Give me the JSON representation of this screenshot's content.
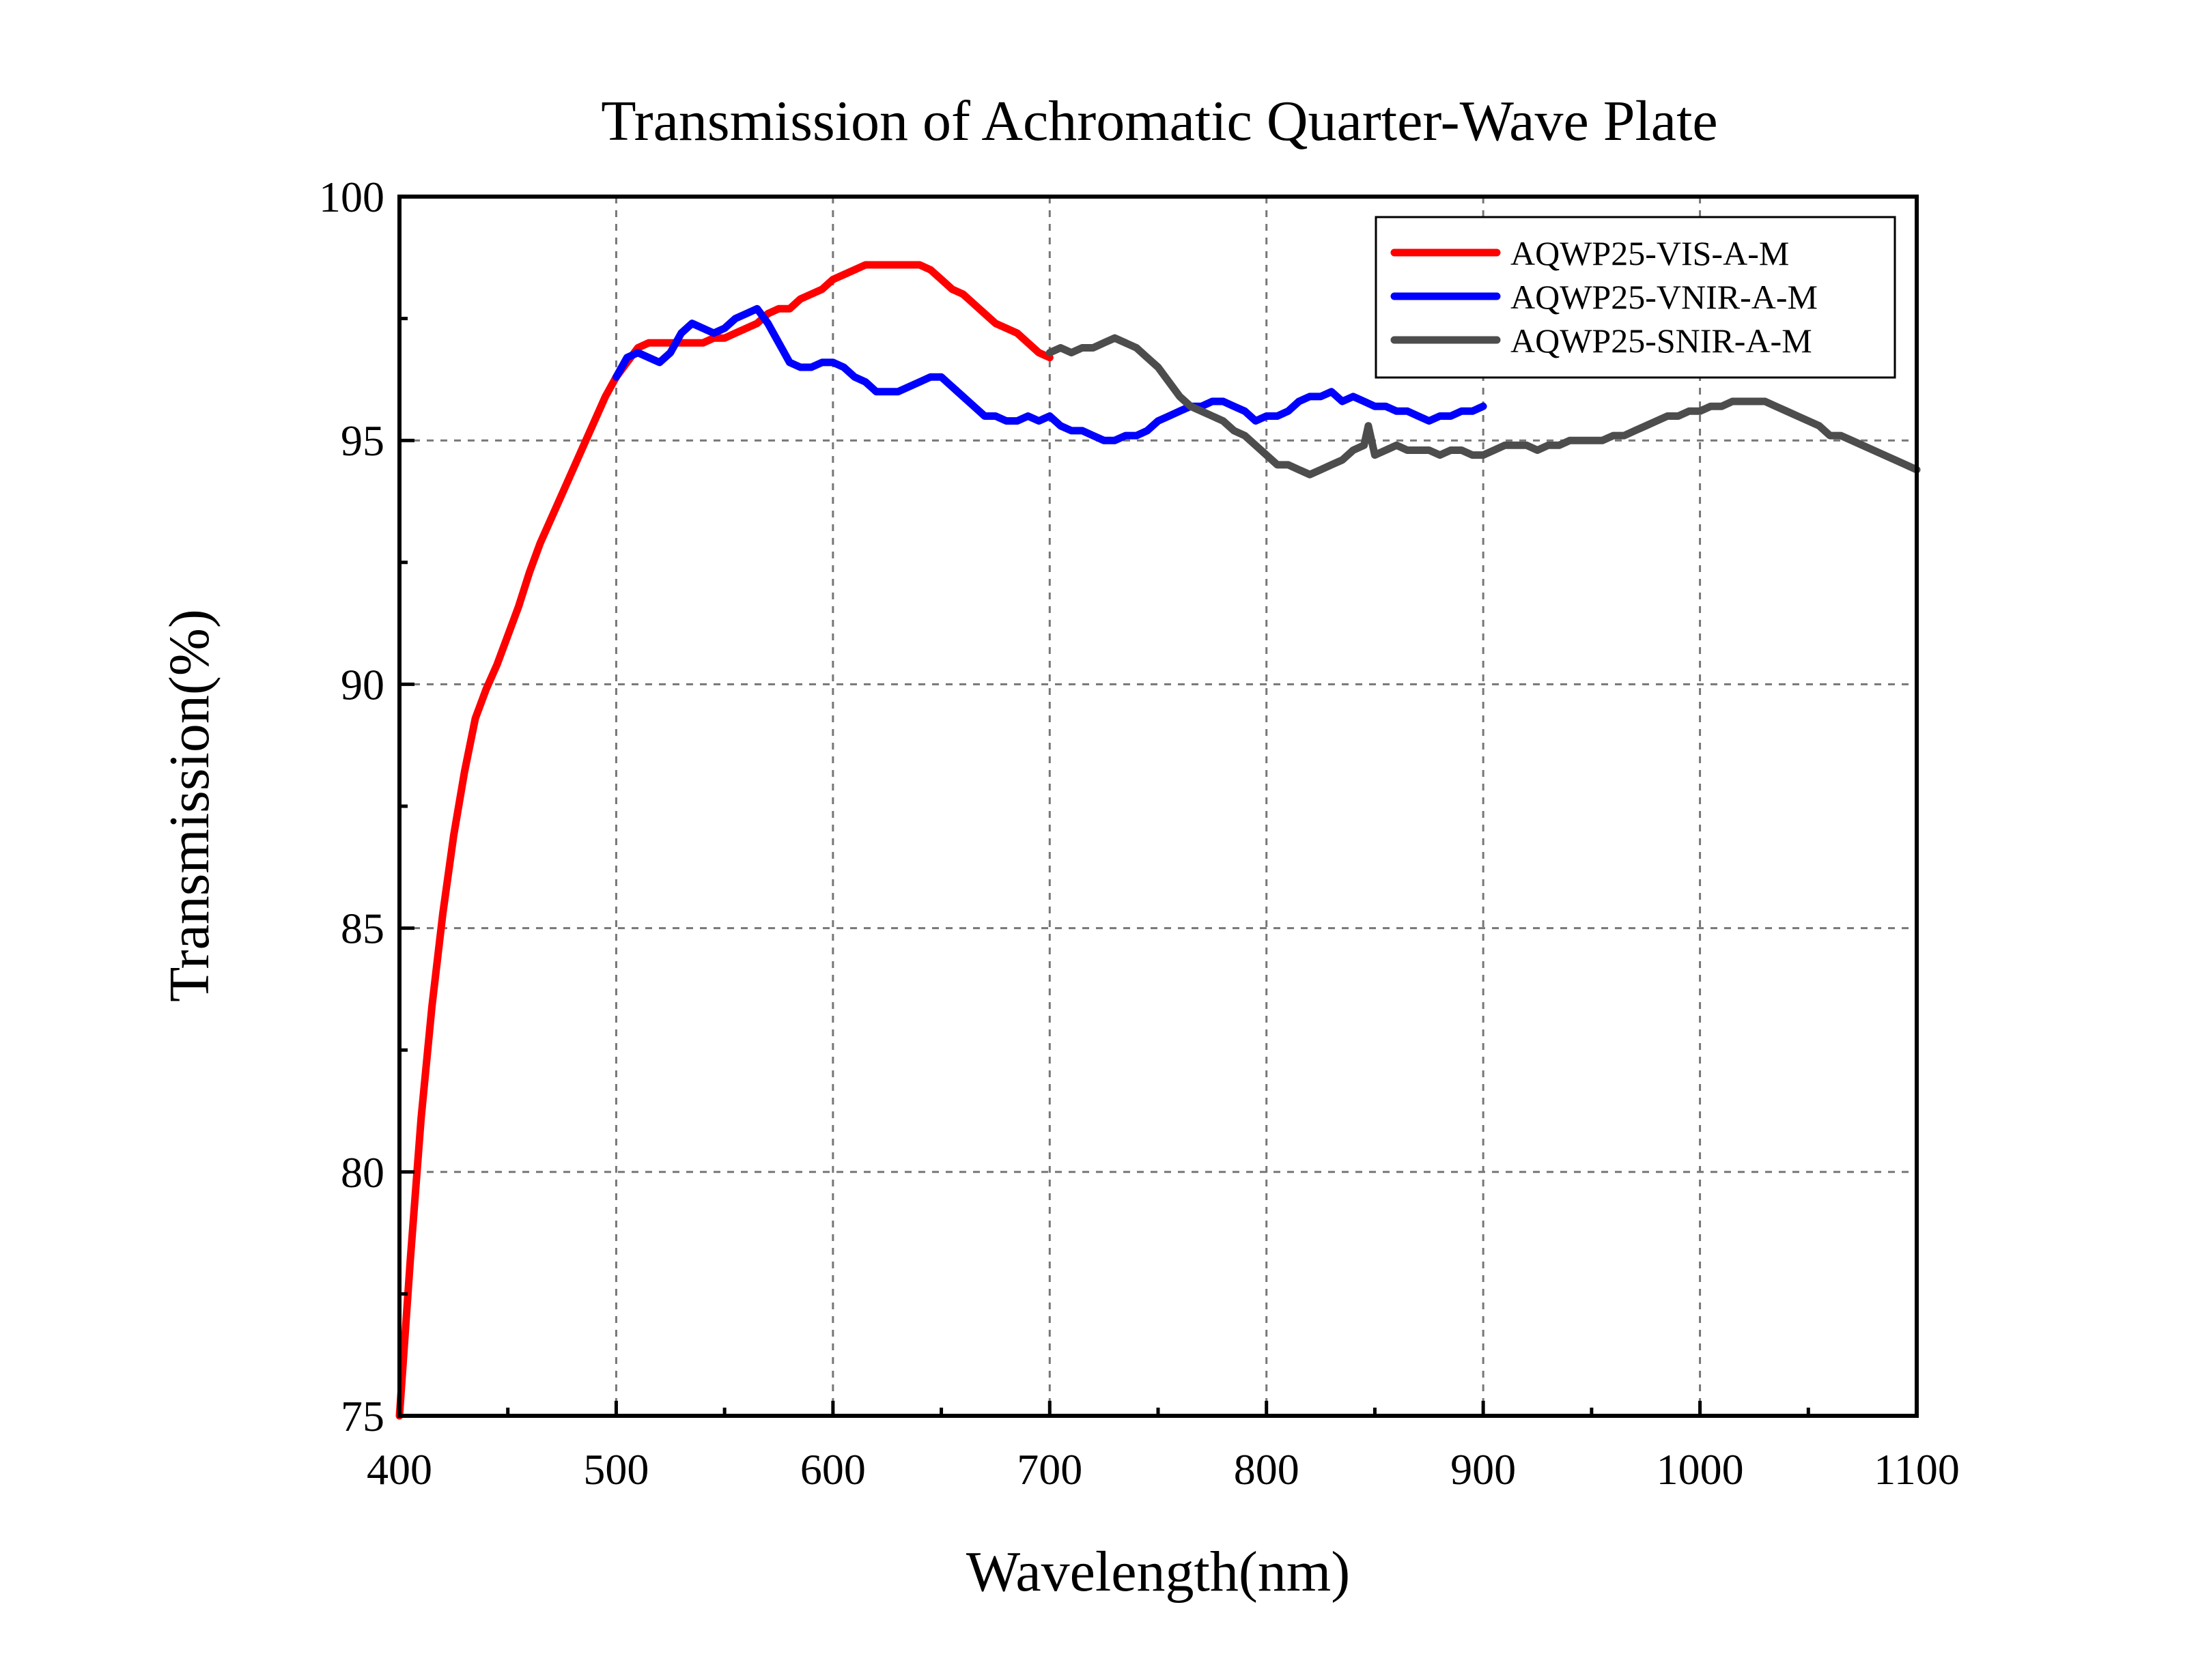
{
  "chart_data": {
    "type": "line",
    "title": "Transmission of Achromatic Quarter-Wave Plate",
    "xlabel": "Wavelength(nm)",
    "ylabel": "Transmission(%)",
    "xlim": [
      400,
      1100
    ],
    "ylim": [
      75,
      100
    ],
    "x_ticks": [
      400,
      500,
      600,
      700,
      800,
      900,
      1000,
      1100
    ],
    "y_ticks": [
      75,
      80,
      85,
      90,
      95,
      100
    ],
    "grid": true,
    "legend_position": "top-right",
    "series": [
      {
        "name": "AQWP25-VIS-A-M",
        "color": "#ff0000",
        "x": [
          400,
          405,
          410,
          415,
          420,
          425,
          430,
          435,
          440,
          445,
          450,
          455,
          460,
          465,
          470,
          475,
          480,
          485,
          490,
          495,
          500,
          505,
          510,
          515,
          520,
          525,
          530,
          535,
          540,
          545,
          550,
          555,
          560,
          565,
          570,
          575,
          580,
          585,
          590,
          595,
          600,
          605,
          610,
          615,
          620,
          625,
          630,
          635,
          640,
          645,
          650,
          655,
          660,
          665,
          670,
          675,
          680,
          685,
          690,
          695,
          700
        ],
        "y": [
          75.0,
          78.2,
          81.1,
          83.4,
          85.3,
          86.9,
          88.2,
          89.3,
          89.9,
          90.4,
          91.0,
          91.6,
          92.3,
          92.9,
          93.4,
          93.9,
          94.4,
          94.9,
          95.4,
          95.9,
          96.3,
          96.6,
          96.9,
          97.0,
          97.0,
          97.0,
          97.0,
          97.0,
          97.0,
          97.1,
          97.1,
          97.2,
          97.3,
          97.4,
          97.6,
          97.7,
          97.7,
          97.9,
          98.0,
          98.1,
          98.3,
          98.4,
          98.5,
          98.6,
          98.6,
          98.6,
          98.6,
          98.6,
          98.6,
          98.5,
          98.3,
          98.1,
          98.0,
          97.8,
          97.6,
          97.4,
          97.3,
          97.2,
          97.0,
          96.8,
          96.7
        ]
      },
      {
        "name": "AQWP25-VNIR-A-M",
        "color": "#0000ff",
        "x": [
          500,
          505,
          510,
          515,
          520,
          525,
          530,
          535,
          540,
          545,
          550,
          555,
          560,
          565,
          570,
          575,
          580,
          585,
          590,
          595,
          600,
          605,
          610,
          615,
          620,
          625,
          630,
          635,
          640,
          645,
          650,
          655,
          660,
          665,
          670,
          675,
          680,
          685,
          690,
          695,
          700,
          705,
          710,
          715,
          720,
          725,
          730,
          735,
          740,
          745,
          750,
          755,
          760,
          765,
          770,
          775,
          780,
          785,
          790,
          795,
          800,
          805,
          810,
          815,
          820,
          825,
          830,
          835,
          840,
          845,
          850,
          855,
          860,
          865,
          870,
          875,
          880,
          885,
          890,
          895,
          900
        ],
        "y": [
          96.3,
          96.7,
          96.8,
          96.7,
          96.6,
          96.8,
          97.2,
          97.4,
          97.3,
          97.2,
          97.3,
          97.5,
          97.6,
          97.7,
          97.4,
          97.0,
          96.6,
          96.5,
          96.5,
          96.6,
          96.6,
          96.5,
          96.3,
          96.2,
          96.0,
          96.0,
          96.0,
          96.1,
          96.2,
          96.3,
          96.3,
          96.1,
          95.9,
          95.7,
          95.5,
          95.5,
          95.4,
          95.4,
          95.5,
          95.4,
          95.5,
          95.3,
          95.2,
          95.2,
          95.1,
          95.0,
          95.0,
          95.1,
          95.1,
          95.2,
          95.4,
          95.5,
          95.6,
          95.7,
          95.7,
          95.8,
          95.8,
          95.7,
          95.6,
          95.4,
          95.5,
          95.5,
          95.6,
          95.8,
          95.9,
          95.9,
          96.0,
          95.8,
          95.9,
          95.8,
          95.7,
          95.7,
          95.6,
          95.6,
          95.5,
          95.4,
          95.5,
          95.5,
          95.6,
          95.6,
          95.7
        ]
      },
      {
        "name": "AQWP25-SNIR-A-M",
        "color": "#4d4d4d",
        "x": [
          700,
          705,
          710,
          715,
          720,
          725,
          730,
          735,
          740,
          745,
          750,
          755,
          760,
          765,
          770,
          775,
          780,
          785,
          790,
          795,
          800,
          805,
          810,
          815,
          820,
          825,
          830,
          835,
          840,
          845,
          847,
          850,
          855,
          860,
          865,
          870,
          875,
          880,
          885,
          890,
          895,
          900,
          905,
          910,
          915,
          920,
          925,
          930,
          935,
          940,
          945,
          950,
          955,
          960,
          965,
          970,
          975,
          980,
          985,
          990,
          995,
          1000,
          1005,
          1010,
          1015,
          1020,
          1025,
          1030,
          1035,
          1040,
          1045,
          1050,
          1055,
          1060,
          1065,
          1070,
          1075,
          1080,
          1085,
          1090,
          1095,
          1100
        ],
        "y": [
          96.8,
          96.9,
          96.8,
          96.9,
          96.9,
          97.0,
          97.1,
          97.0,
          96.9,
          96.7,
          96.5,
          96.2,
          95.9,
          95.7,
          95.6,
          95.5,
          95.4,
          95.2,
          95.1,
          94.9,
          94.7,
          94.5,
          94.5,
          94.4,
          94.3,
          94.4,
          94.5,
          94.6,
          94.8,
          94.9,
          95.3,
          94.7,
          94.8,
          94.9,
          94.8,
          94.8,
          94.8,
          94.7,
          94.8,
          94.8,
          94.7,
          94.7,
          94.8,
          94.9,
          94.9,
          94.9,
          94.8,
          94.9,
          94.9,
          95.0,
          95.0,
          95.0,
          95.0,
          95.1,
          95.1,
          95.2,
          95.3,
          95.4,
          95.5,
          95.5,
          95.6,
          95.6,
          95.7,
          95.7,
          95.8,
          95.8,
          95.8,
          95.8,
          95.7,
          95.6,
          95.5,
          95.4,
          95.3,
          95.1,
          95.1,
          95.0,
          94.9,
          94.8,
          94.7,
          94.6,
          94.5,
          94.4
        ]
      }
    ]
  }
}
